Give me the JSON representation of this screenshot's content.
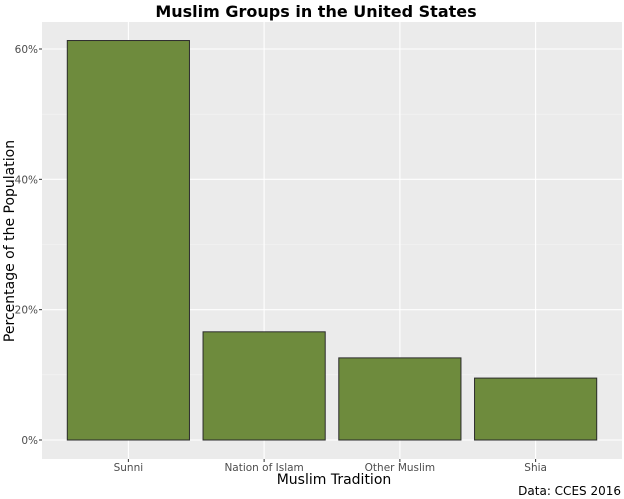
{
  "chart_data": {
    "type": "bar",
    "title": "Muslim Groups in the United States",
    "xlabel": "Muslim Tradition",
    "ylabel": "Percentage of the Population",
    "caption": "Data: CCES 2016",
    "categories": [
      "Sunni",
      "Nation of Islam",
      "Other Muslim",
      "Shia"
    ],
    "values": [
      61.3,
      16.6,
      12.6,
      9.5
    ],
    "unit": "%",
    "ylim": [
      0,
      63
    ],
    "yticks": [
      0,
      20,
      40,
      60
    ],
    "ytick_labels": [
      "0%",
      "20%",
      "40%",
      "60%"
    ],
    "grid": true,
    "colors": {
      "bar_fill": "#6e8b3d",
      "bar_stroke": "#2b2b2b",
      "panel_background": "#ebebeb",
      "grid_major": "#ffffff",
      "grid_minor": "#f5f5f5"
    }
  }
}
